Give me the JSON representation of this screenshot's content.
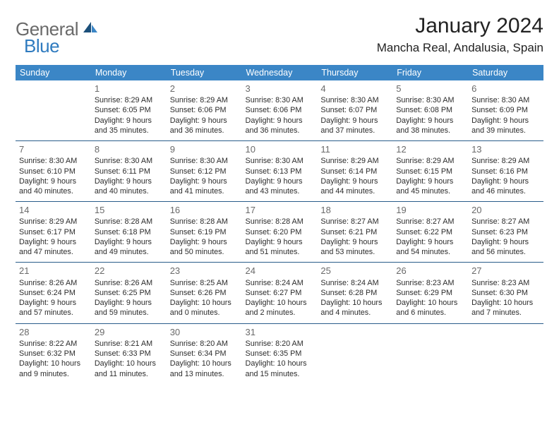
{
  "brand": {
    "part1": "General",
    "part2": "Blue"
  },
  "title": "January 2024",
  "location": "Mancha Real, Andalusia, Spain",
  "colors": {
    "header_bg": "#3b86c6",
    "header_text": "#ffffff",
    "row_border": "#2a5d8a",
    "daynum": "#6a6a6a",
    "text": "#2c2c2c",
    "logo_gray": "#6a6a6a",
    "logo_blue": "#2f7bbf"
  },
  "weekdays": [
    "Sunday",
    "Monday",
    "Tuesday",
    "Wednesday",
    "Thursday",
    "Friday",
    "Saturday"
  ],
  "weeks": [
    [
      {
        "n": "",
        "sr": "",
        "ss": "",
        "dl1": "",
        "dl2": ""
      },
      {
        "n": "1",
        "sr": "Sunrise: 8:29 AM",
        "ss": "Sunset: 6:05 PM",
        "dl1": "Daylight: 9 hours",
        "dl2": "and 35 minutes."
      },
      {
        "n": "2",
        "sr": "Sunrise: 8:29 AM",
        "ss": "Sunset: 6:06 PM",
        "dl1": "Daylight: 9 hours",
        "dl2": "and 36 minutes."
      },
      {
        "n": "3",
        "sr": "Sunrise: 8:30 AM",
        "ss": "Sunset: 6:06 PM",
        "dl1": "Daylight: 9 hours",
        "dl2": "and 36 minutes."
      },
      {
        "n": "4",
        "sr": "Sunrise: 8:30 AM",
        "ss": "Sunset: 6:07 PM",
        "dl1": "Daylight: 9 hours",
        "dl2": "and 37 minutes."
      },
      {
        "n": "5",
        "sr": "Sunrise: 8:30 AM",
        "ss": "Sunset: 6:08 PM",
        "dl1": "Daylight: 9 hours",
        "dl2": "and 38 minutes."
      },
      {
        "n": "6",
        "sr": "Sunrise: 8:30 AM",
        "ss": "Sunset: 6:09 PM",
        "dl1": "Daylight: 9 hours",
        "dl2": "and 39 minutes."
      }
    ],
    [
      {
        "n": "7",
        "sr": "Sunrise: 8:30 AM",
        "ss": "Sunset: 6:10 PM",
        "dl1": "Daylight: 9 hours",
        "dl2": "and 40 minutes."
      },
      {
        "n": "8",
        "sr": "Sunrise: 8:30 AM",
        "ss": "Sunset: 6:11 PM",
        "dl1": "Daylight: 9 hours",
        "dl2": "and 40 minutes."
      },
      {
        "n": "9",
        "sr": "Sunrise: 8:30 AM",
        "ss": "Sunset: 6:12 PM",
        "dl1": "Daylight: 9 hours",
        "dl2": "and 41 minutes."
      },
      {
        "n": "10",
        "sr": "Sunrise: 8:30 AM",
        "ss": "Sunset: 6:13 PM",
        "dl1": "Daylight: 9 hours",
        "dl2": "and 43 minutes."
      },
      {
        "n": "11",
        "sr": "Sunrise: 8:29 AM",
        "ss": "Sunset: 6:14 PM",
        "dl1": "Daylight: 9 hours",
        "dl2": "and 44 minutes."
      },
      {
        "n": "12",
        "sr": "Sunrise: 8:29 AM",
        "ss": "Sunset: 6:15 PM",
        "dl1": "Daylight: 9 hours",
        "dl2": "and 45 minutes."
      },
      {
        "n": "13",
        "sr": "Sunrise: 8:29 AM",
        "ss": "Sunset: 6:16 PM",
        "dl1": "Daylight: 9 hours",
        "dl2": "and 46 minutes."
      }
    ],
    [
      {
        "n": "14",
        "sr": "Sunrise: 8:29 AM",
        "ss": "Sunset: 6:17 PM",
        "dl1": "Daylight: 9 hours",
        "dl2": "and 47 minutes."
      },
      {
        "n": "15",
        "sr": "Sunrise: 8:28 AM",
        "ss": "Sunset: 6:18 PM",
        "dl1": "Daylight: 9 hours",
        "dl2": "and 49 minutes."
      },
      {
        "n": "16",
        "sr": "Sunrise: 8:28 AM",
        "ss": "Sunset: 6:19 PM",
        "dl1": "Daylight: 9 hours",
        "dl2": "and 50 minutes."
      },
      {
        "n": "17",
        "sr": "Sunrise: 8:28 AM",
        "ss": "Sunset: 6:20 PM",
        "dl1": "Daylight: 9 hours",
        "dl2": "and 51 minutes."
      },
      {
        "n": "18",
        "sr": "Sunrise: 8:27 AM",
        "ss": "Sunset: 6:21 PM",
        "dl1": "Daylight: 9 hours",
        "dl2": "and 53 minutes."
      },
      {
        "n": "19",
        "sr": "Sunrise: 8:27 AM",
        "ss": "Sunset: 6:22 PM",
        "dl1": "Daylight: 9 hours",
        "dl2": "and 54 minutes."
      },
      {
        "n": "20",
        "sr": "Sunrise: 8:27 AM",
        "ss": "Sunset: 6:23 PM",
        "dl1": "Daylight: 9 hours",
        "dl2": "and 56 minutes."
      }
    ],
    [
      {
        "n": "21",
        "sr": "Sunrise: 8:26 AM",
        "ss": "Sunset: 6:24 PM",
        "dl1": "Daylight: 9 hours",
        "dl2": "and 57 minutes."
      },
      {
        "n": "22",
        "sr": "Sunrise: 8:26 AM",
        "ss": "Sunset: 6:25 PM",
        "dl1": "Daylight: 9 hours",
        "dl2": "and 59 minutes."
      },
      {
        "n": "23",
        "sr": "Sunrise: 8:25 AM",
        "ss": "Sunset: 6:26 PM",
        "dl1": "Daylight: 10 hours",
        "dl2": "and 0 minutes."
      },
      {
        "n": "24",
        "sr": "Sunrise: 8:24 AM",
        "ss": "Sunset: 6:27 PM",
        "dl1": "Daylight: 10 hours",
        "dl2": "and 2 minutes."
      },
      {
        "n": "25",
        "sr": "Sunrise: 8:24 AM",
        "ss": "Sunset: 6:28 PM",
        "dl1": "Daylight: 10 hours",
        "dl2": "and 4 minutes."
      },
      {
        "n": "26",
        "sr": "Sunrise: 8:23 AM",
        "ss": "Sunset: 6:29 PM",
        "dl1": "Daylight: 10 hours",
        "dl2": "and 6 minutes."
      },
      {
        "n": "27",
        "sr": "Sunrise: 8:23 AM",
        "ss": "Sunset: 6:30 PM",
        "dl1": "Daylight: 10 hours",
        "dl2": "and 7 minutes."
      }
    ],
    [
      {
        "n": "28",
        "sr": "Sunrise: 8:22 AM",
        "ss": "Sunset: 6:32 PM",
        "dl1": "Daylight: 10 hours",
        "dl2": "and 9 minutes."
      },
      {
        "n": "29",
        "sr": "Sunrise: 8:21 AM",
        "ss": "Sunset: 6:33 PM",
        "dl1": "Daylight: 10 hours",
        "dl2": "and 11 minutes."
      },
      {
        "n": "30",
        "sr": "Sunrise: 8:20 AM",
        "ss": "Sunset: 6:34 PM",
        "dl1": "Daylight: 10 hours",
        "dl2": "and 13 minutes."
      },
      {
        "n": "31",
        "sr": "Sunrise: 8:20 AM",
        "ss": "Sunset: 6:35 PM",
        "dl1": "Daylight: 10 hours",
        "dl2": "and 15 minutes."
      },
      {
        "n": "",
        "sr": "",
        "ss": "",
        "dl1": "",
        "dl2": ""
      },
      {
        "n": "",
        "sr": "",
        "ss": "",
        "dl1": "",
        "dl2": ""
      },
      {
        "n": "",
        "sr": "",
        "ss": "",
        "dl1": "",
        "dl2": ""
      }
    ]
  ]
}
